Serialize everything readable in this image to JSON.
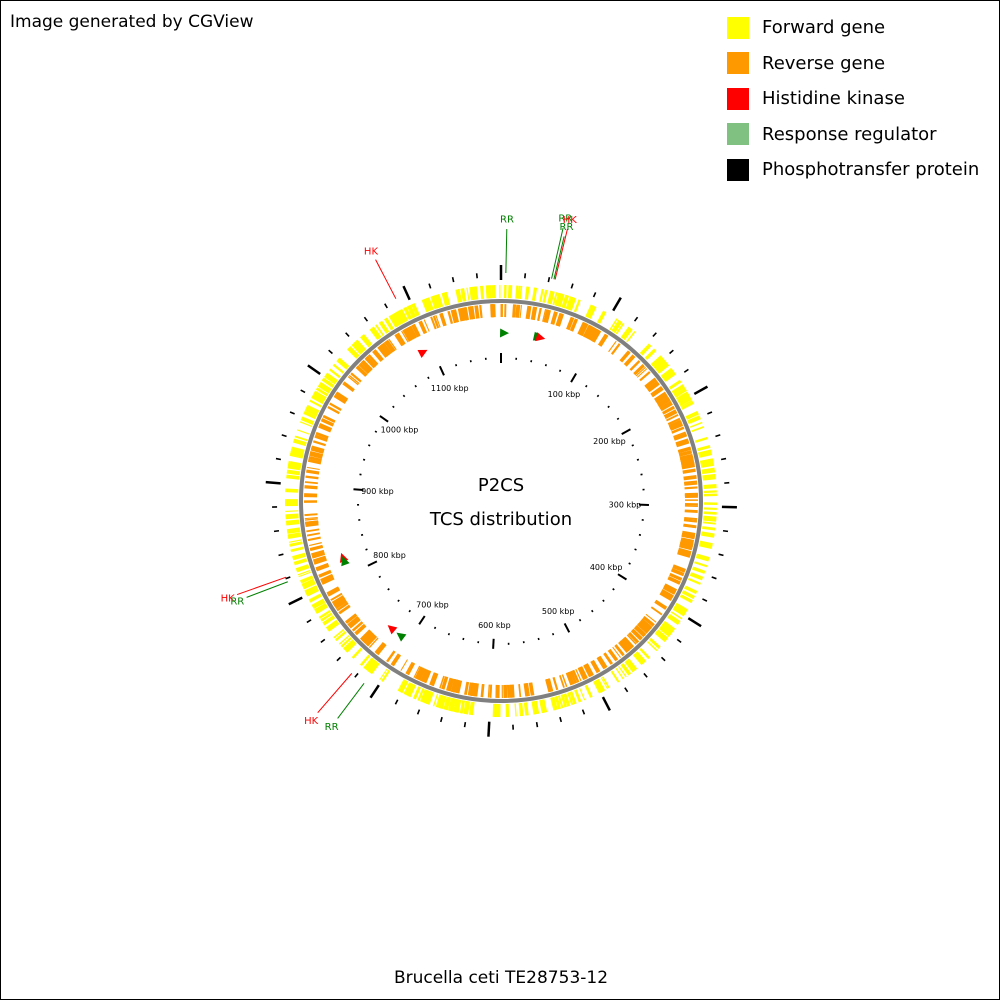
{
  "header": {
    "credit": "Image generated by CGView"
  },
  "legend": [
    {
      "label": "Forward gene",
      "color": "#ffff00"
    },
    {
      "label": "Reverse gene",
      "color": "#ff9900"
    },
    {
      "label": "Histidine kinase",
      "color": "#ff0000"
    },
    {
      "label": "Response regulator",
      "color": "#80c080"
    },
    {
      "label": "Phosphotransfer protein",
      "color": "#000000"
    }
  ],
  "map": {
    "title_line1": "P2CS",
    "title_line2": "TCS distribution",
    "genome_length_kbp": 1180,
    "scale_labels": [
      "100 kbp",
      "200 kbp",
      "300 kbp",
      "400 kbp",
      "500 kbp",
      "600 kbp",
      "700 kbp",
      "800 kbp",
      "900 kbp",
      "1000 kbp",
      "1100 kbp"
    ],
    "backbone_color": "#808080",
    "forward_color": "#ffff00",
    "reverse_color": "#ff9900",
    "tcs_features": [
      {
        "type": "RR",
        "label": "RR",
        "pos_kbp": 4,
        "color": "#008000"
      },
      {
        "type": "RR",
        "label": "RR",
        "pos_kbp": 42,
        "color": "#008000"
      },
      {
        "type": "RR",
        "label": "RR",
        "pos_kbp": 44,
        "color": "#008000"
      },
      {
        "type": "HK",
        "label": "HK",
        "pos_kbp": 45,
        "color": "#ff0000"
      },
      {
        "type": "HK",
        "label": "HK",
        "pos_kbp": 1090,
        "color": "#ff0000"
      },
      {
        "type": "HK",
        "label": "HK",
        "pos_kbp": 821,
        "color": "#ff0000"
      },
      {
        "type": "RR",
        "label": "RR",
        "pos_kbp": 817,
        "color": "#008000"
      },
      {
        "type": "HK",
        "label": "HK",
        "pos_kbp": 724,
        "color": "#ff0000"
      },
      {
        "type": "RR",
        "label": "RR",
        "pos_kbp": 711,
        "color": "#008000"
      }
    ]
  },
  "caption": "Brucella ceti TE28753-12"
}
